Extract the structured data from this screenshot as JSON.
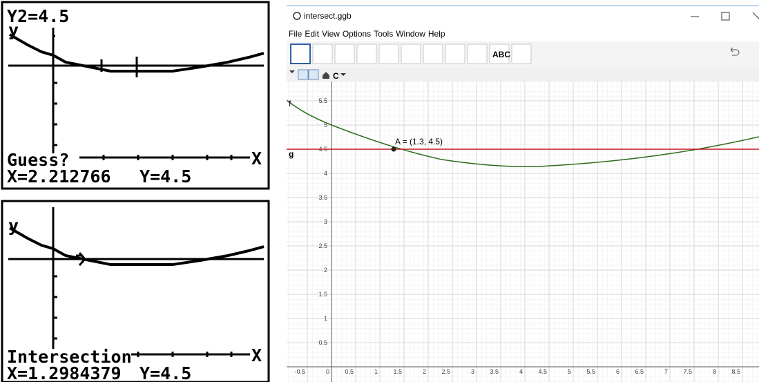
{
  "calculator_screens": [
    {
      "top_label": "Y2=4.5",
      "y_axis_label": "y",
      "prompt": "Guess?",
      "x_axis_label": "X",
      "x_readout": "X=2.212766",
      "y_readout": "Y=4.5"
    },
    {
      "y_axis_label": "y",
      "prompt": "Intersection",
      "x_axis_label": "X",
      "x_readout": "X=1.2984379",
      "y_readout": "Y=4.5"
    }
  ],
  "window": {
    "title": "intersect.ggb",
    "menu": [
      "File",
      "Edit",
      "View",
      "Options",
      "Tools",
      "Window",
      "Help"
    ],
    "text_tool": "ABC"
  },
  "graphics": {
    "xticks": [
      -0.5,
      0,
      0.5,
      1,
      1.5,
      2,
      2.5,
      3,
      3.5,
      4,
      4.5,
      5,
      5.5,
      6,
      6.5,
      7,
      7.5,
      8,
      8.5
    ],
    "yticks": [
      0.5,
      1,
      1.5,
      2,
      2.5,
      3,
      3.5,
      4,
      4.5,
      5,
      5.5
    ],
    "function_labels": [
      "f",
      "g"
    ],
    "point_label": "A = (1.3, 4.5)"
  }
}
